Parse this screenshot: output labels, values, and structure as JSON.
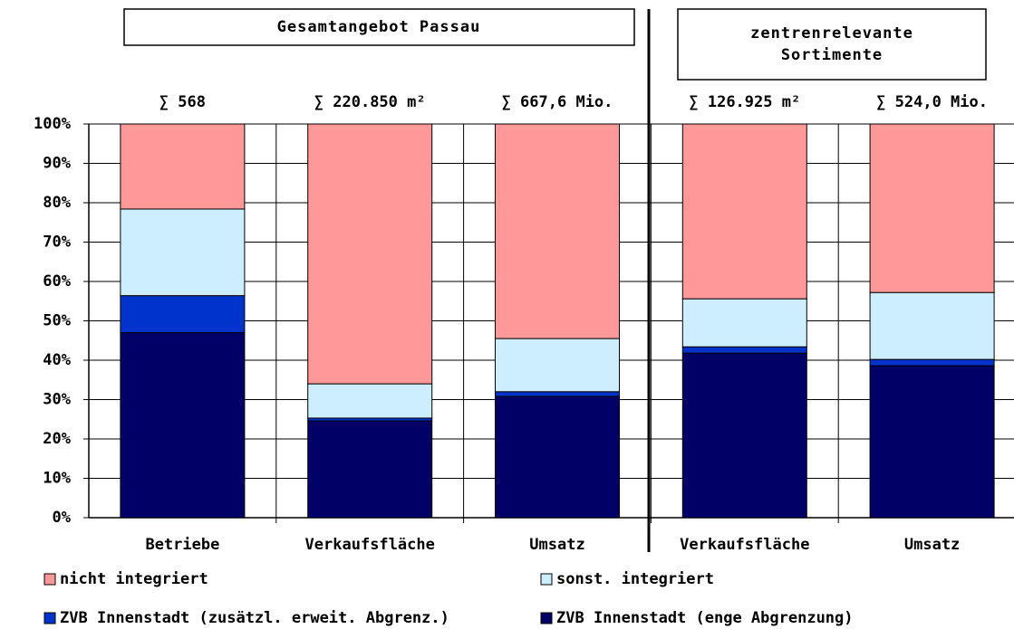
{
  "chart_data": {
    "type": "stacked_bar",
    "groups": [
      {
        "lines": [
          "Gesamtangebot Passau"
        ]
      },
      {
        "lines": [
          "zentrenrelevante",
          "Sortimente"
        ]
      }
    ],
    "sum_labels": [
      "∑ 568",
      "∑ 220.850 m²",
      "∑ 667,6 Mio.",
      "∑ 126.925 m²",
      "∑ 524,0 Mio."
    ],
    "categories": [
      "Betriebe",
      "Verkaufsfläche",
      "Umsatz",
      "Verkaufsfläche",
      "Umsatz"
    ],
    "series": [
      {
        "name": "ZVB Innenstadt (enge Abgrenzung)",
        "color": "#000066",
        "values": [
          47,
          24.6,
          30.8,
          41.8,
          38.6
        ]
      },
      {
        "name": "ZVB Innenstadt (zusätzl. erweit. Abgrenz.)",
        "color": "#0033cc",
        "values": [
          9.4,
          0.7,
          1.2,
          1.6,
          1.6
        ]
      },
      {
        "name": "sonst. integriert",
        "color": "#cceeff",
        "values": [
          22,
          8.7,
          13.5,
          12.2,
          17
        ]
      },
      {
        "name": "nicht integriert",
        "color": "#ff9999",
        "values": [
          21.6,
          66,
          54.5,
          44.4,
          42.8
        ]
      }
    ],
    "ylim": [
      0,
      100
    ],
    "yticks": [
      {
        "value": 0,
        "label": "0%"
      },
      {
        "value": 10,
        "label": "10%"
      },
      {
        "value": 20,
        "label": "20%"
      },
      {
        "value": 30,
        "label": "30%"
      },
      {
        "value": 40,
        "label": "40%"
      },
      {
        "value": 50,
        "label": "50%"
      },
      {
        "value": 60,
        "label": "60%"
      },
      {
        "value": 70,
        "label": "70%"
      },
      {
        "value": 80,
        "label": "80%"
      },
      {
        "value": 90,
        "label": "90%"
      },
      {
        "value": 100,
        "label": "100%"
      }
    ],
    "grid": true
  }
}
